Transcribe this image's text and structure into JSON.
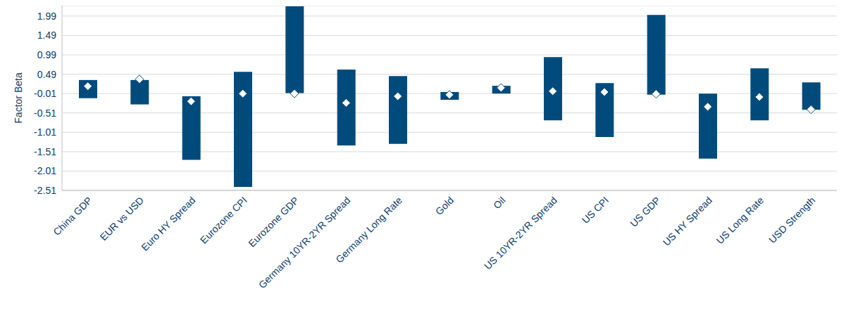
{
  "chart_data": {
    "type": "bar",
    "y_label": "Factor Beta",
    "categories": [
      "China GDP",
      "EUR vs USD",
      "Euro HY Spread",
      "Eurozone CPI",
      "Eurozone GDP",
      "Germany 10YR-2YR Spread",
      "Germany Long Rate",
      "Gold",
      "Oil",
      "US 10YR-2YR Spread",
      "US CPI",
      "US GDP",
      "US HY Spread",
      "US Long Rate",
      "USD Strength"
    ],
    "series": [
      {
        "type": "range_bar",
        "color": "#004b7c",
        "low": [
          -0.13,
          -0.29,
          -1.72,
          -2.42,
          0.0,
          -1.35,
          -1.31,
          -0.17,
          -0.01,
          -0.7,
          -1.13,
          -0.04,
          -1.69,
          -0.7,
          -0.43
        ],
        "high": [
          0.34,
          0.34,
          -0.08,
          0.55,
          2.24,
          0.61,
          0.44,
          0.03,
          0.19,
          0.93,
          0.26,
          2.02,
          -0.01,
          0.64,
          0.28
        ]
      },
      {
        "type": "scatter",
        "marker": "diamond",
        "color": "#ffffff",
        "values": [
          0.18,
          0.36,
          -0.21,
          -0.01,
          -0.01,
          -0.25,
          -0.08,
          -0.04,
          0.14,
          0.05,
          0.03,
          -0.02,
          -0.35,
          -0.1,
          -0.42
        ]
      }
    ],
    "ylim": [
      -2.51,
      2.26
    ],
    "yticks": [
      -2.51,
      -2.01,
      -1.51,
      -1.01,
      -0.51,
      -0.01,
      0.49,
      0.99,
      1.49,
      1.99
    ],
    "grid": true
  }
}
